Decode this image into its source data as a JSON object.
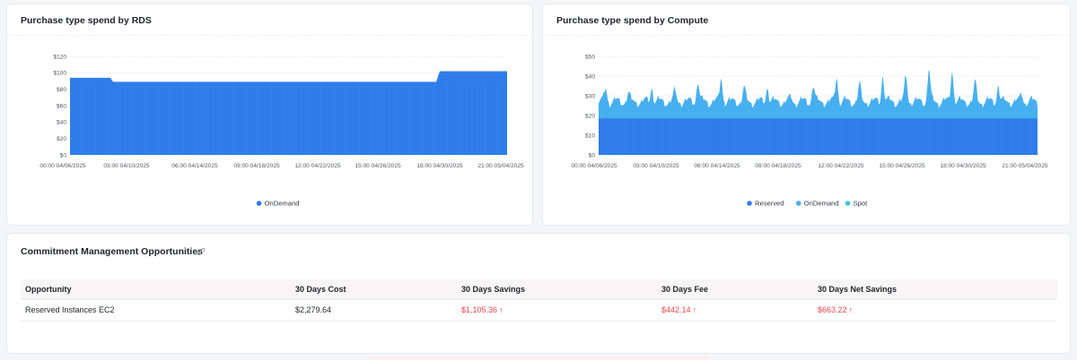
{
  "panels": {
    "rds": {
      "title": "Purchase type spend by RDS",
      "chart_data": {
        "type": "area",
        "title": "Purchase type spend by RDS",
        "y_ticks": [
          "$120",
          "$100",
          "$80",
          "$60",
          "$40",
          "$20",
          "$0"
        ],
        "ylim": [
          0,
          120
        ],
        "x_ticks": [
          "00:00 04/06/2025",
          "03:00 04/10/2025",
          "06:00 04/14/2025",
          "09:00 04/18/2025",
          "12:00 04/22/2025",
          "15:00 04/26/2025",
          "18:00 04/30/2025",
          "21:00 05/04/2025"
        ],
        "series": [
          {
            "name": "OnDemand",
            "color": "#2f7de9",
            "points": [
              [
                "00:00 04/06/2025",
                94
              ],
              [
                "12:00 04/09/2025",
                94
              ],
              [
                "13:00 04/09/2025",
                89
              ],
              [
                "18:00 04/30/2025",
                89
              ],
              [
                "19:00 04/30/2025",
                102
              ],
              [
                "21:00 05/04/2025",
                102
              ]
            ]
          }
        ],
        "legend": [
          "OnDemand"
        ],
        "grid": true,
        "legend_position": "bottom-center"
      }
    },
    "compute": {
      "title": "Purchase type spend by Compute",
      "chart_data": {
        "type": "area",
        "title": "Purchase type spend by Compute",
        "y_ticks": [
          "$50",
          "$40",
          "$30",
          "$20",
          "$10",
          "$0"
        ],
        "ylim": [
          0,
          50
        ],
        "x_ticks": [
          "00:00 04/06/2025",
          "03:00 04/10/2025",
          "06:00 04/14/2025",
          "09:00 04/18/2025",
          "12:00 04/22/2025",
          "15:00 04/26/2025",
          "18:00 04/30/2025",
          "21:00 05/04/2025"
        ],
        "stacked": true,
        "series": [
          {
            "name": "Reserved",
            "color": "#2f7de9",
            "approx_value": 18.5
          },
          {
            "name": "OnDemand",
            "color": "#46aff0",
            "approx_range": [
              6,
              22
            ]
          },
          {
            "name": "Spot",
            "color": "#41c4dc",
            "approx_value": 0
          }
        ],
        "total_daily_peaks": [
          33,
          31,
          32,
          33,
          36,
          38,
          34,
          32,
          29,
          34,
          38,
          36,
          38,
          40,
          43,
          41,
          37,
          33,
          30
        ],
        "legend": [
          "Reserved",
          "OnDemand",
          "Spot"
        ],
        "grid": true,
        "legend_position": "bottom-center"
      }
    }
  },
  "commitment": {
    "title": "Commitment Management Opportunities",
    "columns": [
      "Opportunity",
      "30 Days Cost",
      "30 Days Savings",
      "30 Days Fee",
      "30 Days Net Savings"
    ],
    "rows": [
      {
        "opportunity": "Reserved Instances EC2",
        "cost": "$2,279.64",
        "savings": "$1,105.36",
        "fee": "$442.14",
        "net_savings": "$663.22"
      }
    ],
    "trend_icon": "arrow-up-icon",
    "trend_glyph": "↑",
    "negative_color": "#e5484d"
  }
}
